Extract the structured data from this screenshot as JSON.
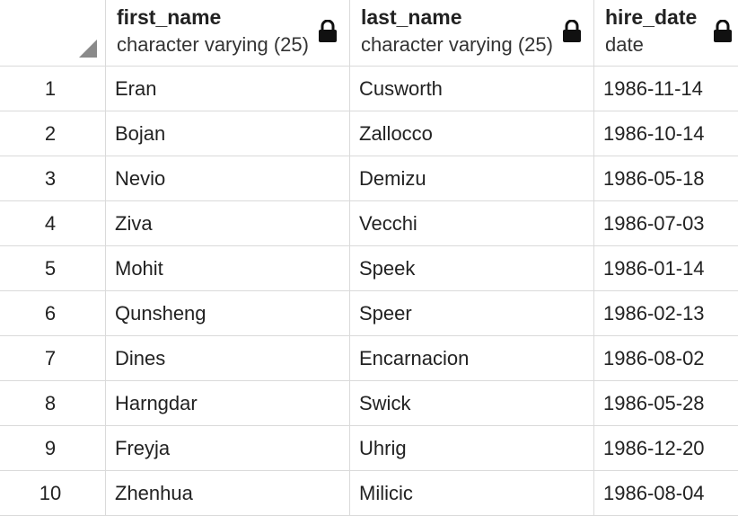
{
  "columns": [
    {
      "name": "first_name",
      "type": "character varying (25)"
    },
    {
      "name": "last_name",
      "type": "character varying (25)"
    },
    {
      "name": "hire_date",
      "type": "date"
    }
  ],
  "icons": {
    "lock": "lock-icon",
    "corner": "select-all-corner-icon"
  },
  "rows": [
    {
      "num": "1",
      "first_name": "Eran",
      "last_name": "Cusworth",
      "hire_date": "1986-11-14"
    },
    {
      "num": "2",
      "first_name": "Bojan",
      "last_name": "Zallocco",
      "hire_date": "1986-10-14"
    },
    {
      "num": "3",
      "first_name": "Nevio",
      "last_name": "Demizu",
      "hire_date": "1986-05-18"
    },
    {
      "num": "4",
      "first_name": "Ziva",
      "last_name": "Vecchi",
      "hire_date": "1986-07-03"
    },
    {
      "num": "5",
      "first_name": "Mohit",
      "last_name": "Speek",
      "hire_date": "1986-01-14"
    },
    {
      "num": "6",
      "first_name": "Qunsheng",
      "last_name": "Speer",
      "hire_date": "1986-02-13"
    },
    {
      "num": "7",
      "first_name": "Dines",
      "last_name": "Encarnacion",
      "hire_date": "1986-08-02"
    },
    {
      "num": "8",
      "first_name": "Harngdar",
      "last_name": "Swick",
      "hire_date": "1986-05-28"
    },
    {
      "num": "9",
      "first_name": "Freyja",
      "last_name": "Uhrig",
      "hire_date": "1986-12-20"
    },
    {
      "num": "10",
      "first_name": "Zhenhua",
      "last_name": "Milicic",
      "hire_date": "1986-08-04"
    }
  ]
}
